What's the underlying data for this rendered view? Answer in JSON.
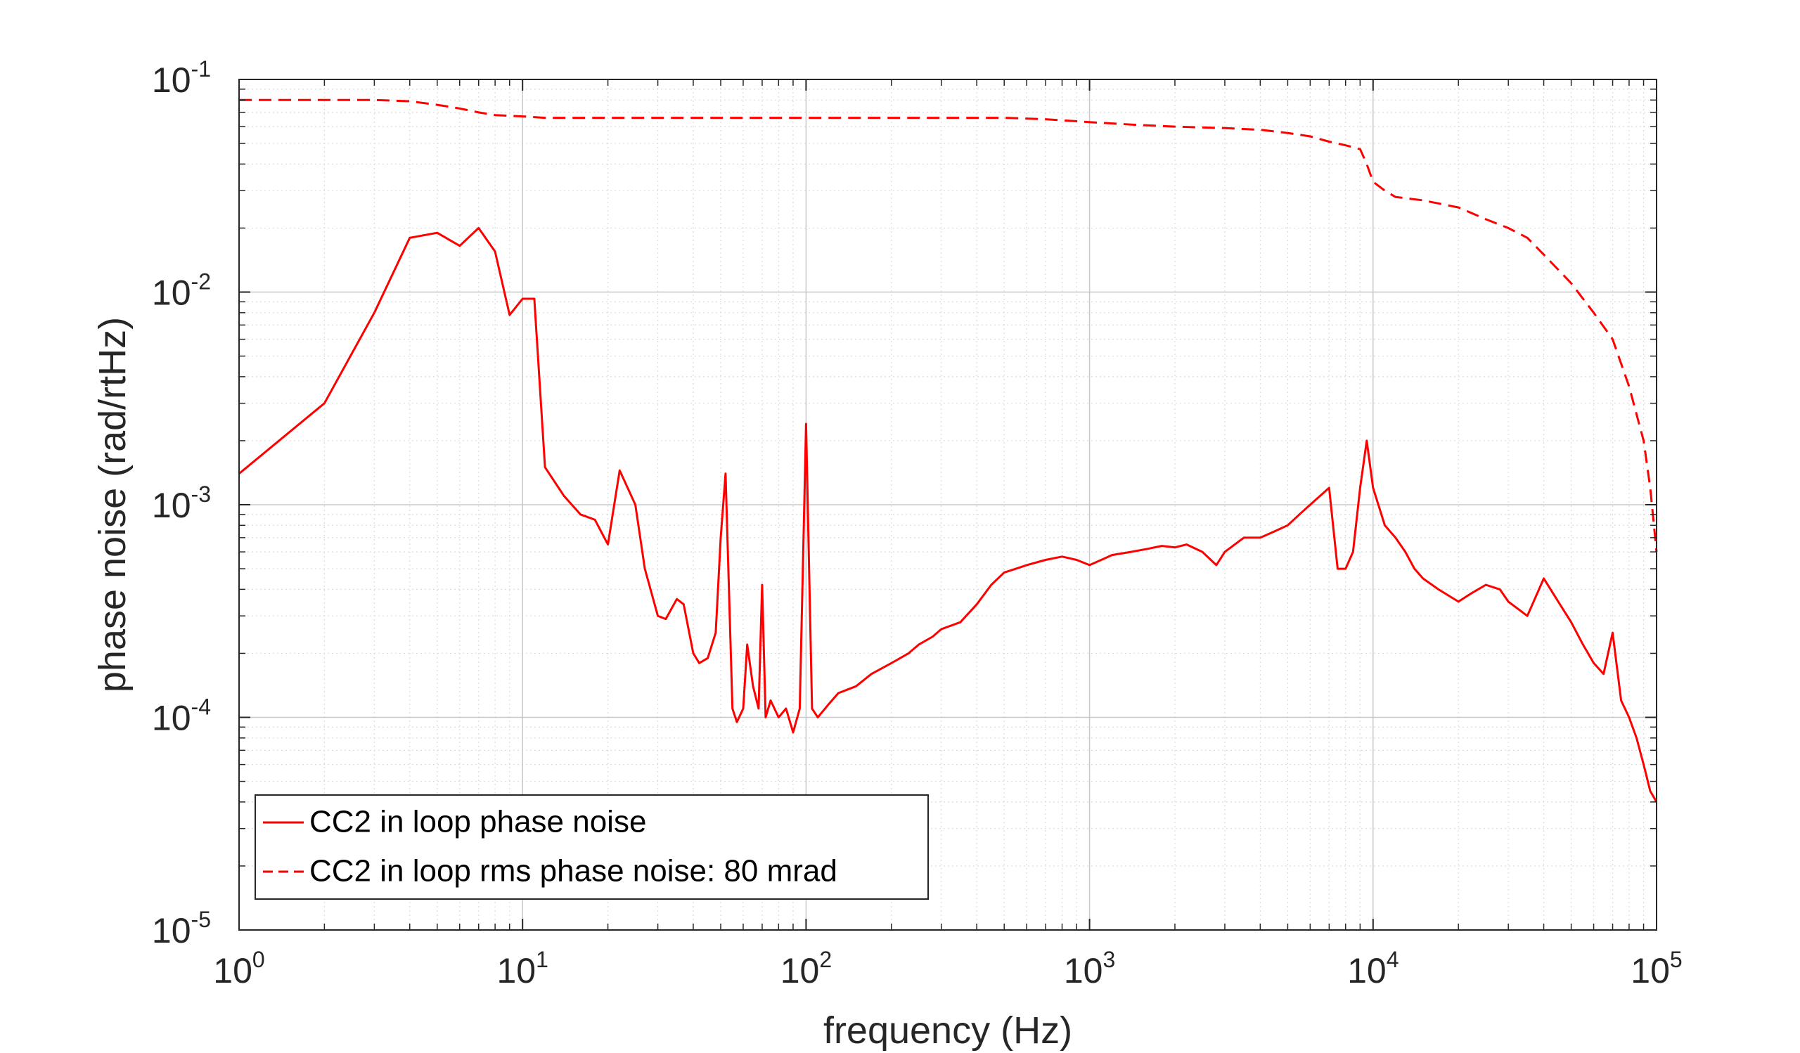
{
  "chart_data": {
    "type": "line",
    "xlabel": "frequency (Hz)",
    "ylabel": "phase noise (rad/rtHz)",
    "xscale": "log",
    "yscale": "log",
    "xlim": [
      1,
      100000
    ],
    "ylim": [
      1e-05,
      0.1
    ],
    "grid": true,
    "legend_position": "bottom-left",
    "x_ticks": [
      {
        "base": "10",
        "exp": "0"
      },
      {
        "base": "10",
        "exp": "1"
      },
      {
        "base": "10",
        "exp": "2"
      },
      {
        "base": "10",
        "exp": "3"
      },
      {
        "base": "10",
        "exp": "4"
      },
      {
        "base": "10",
        "exp": "5"
      }
    ],
    "y_ticks": [
      {
        "base": "10",
        "exp": "-5"
      },
      {
        "base": "10",
        "exp": "-4"
      },
      {
        "base": "10",
        "exp": "-3"
      },
      {
        "base": "10",
        "exp": "-2"
      },
      {
        "base": "10",
        "exp": "-1"
      }
    ],
    "series": [
      {
        "name": "CC2 in loop phase noise",
        "color": "#ff0000",
        "style": "solid",
        "x": [
          1,
          2,
          3,
          4,
          5,
          6,
          7,
          8,
          9,
          10,
          11,
          12,
          14,
          16,
          18,
          20,
          22,
          25,
          27,
          30,
          32,
          35,
          37,
          40,
          42,
          45,
          48,
          50,
          52,
          55,
          57,
          60,
          62,
          65,
          68,
          70,
          72,
          75,
          80,
          85,
          90,
          95,
          100,
          105,
          110,
          120,
          130,
          150,
          170,
          200,
          230,
          250,
          280,
          300,
          350,
          400,
          450,
          500,
          550,
          600,
          700,
          800,
          900,
          1000,
          1100,
          1200,
          1400,
          1600,
          1800,
          2000,
          2200,
          2500,
          2800,
          3000,
          3500,
          4000,
          4500,
          5000,
          5500,
          6000,
          6500,
          7000,
          7500,
          8000,
          8500,
          9000,
          9500,
          10000,
          11000,
          12000,
          13000,
          14000,
          15000,
          17000,
          20000,
          22000,
          25000,
          28000,
          30000,
          35000,
          40000,
          45000,
          50000,
          55000,
          60000,
          65000,
          70000,
          75000,
          80000,
          85000,
          90000,
          95000,
          100000
        ],
        "values": [
          0.0014,
          0.003,
          0.008,
          0.018,
          0.019,
          0.0165,
          0.02,
          0.0155,
          0.0078,
          0.0093,
          0.0093,
          0.0015,
          0.0011,
          0.0009,
          0.00085,
          0.00065,
          0.00145,
          0.001,
          0.0005,
          0.0003,
          0.00029,
          0.00036,
          0.00034,
          0.0002,
          0.00018,
          0.00019,
          0.00025,
          0.0007,
          0.0014,
          0.00011,
          9.5e-05,
          0.00011,
          0.00022,
          0.00014,
          0.00011,
          0.00042,
          0.0001,
          0.00012,
          0.0001,
          0.00011,
          8.5e-05,
          0.00011,
          0.0024,
          0.00011,
          0.0001,
          0.000115,
          0.00013,
          0.00014,
          0.00016,
          0.00018,
          0.0002,
          0.00022,
          0.00024,
          0.00026,
          0.00028,
          0.00034,
          0.00042,
          0.00048,
          0.0005,
          0.00052,
          0.00055,
          0.00057,
          0.00055,
          0.00052,
          0.00055,
          0.00058,
          0.0006,
          0.00062,
          0.00064,
          0.00063,
          0.00065,
          0.0006,
          0.00052,
          0.0006,
          0.0007,
          0.0007,
          0.00075,
          0.0008,
          0.0009,
          0.001,
          0.0011,
          0.0012,
          0.0005,
          0.0005,
          0.0006,
          0.0012,
          0.002,
          0.0012,
          0.0008,
          0.0007,
          0.0006,
          0.0005,
          0.00045,
          0.0004,
          0.00035,
          0.00038,
          0.00042,
          0.0004,
          0.00035,
          0.0003,
          0.00045,
          0.00035,
          0.00028,
          0.00022,
          0.00018,
          0.00016,
          0.00025,
          0.00012,
          0.0001,
          8e-05,
          6e-05,
          4.5e-05,
          4e-05
        ]
      },
      {
        "name": "CC2 in loop rms phase noise: 80 mrad",
        "color": "#ff0000",
        "style": "dashed",
        "x": [
          1,
          2,
          3,
          4,
          5,
          6,
          7,
          8,
          10,
          12,
          15,
          20,
          30,
          50,
          100,
          200,
          300,
          500,
          700,
          1000,
          1500,
          2000,
          3000,
          4000,
          5000,
          6000,
          7000,
          8000,
          9000,
          9500,
          10000,
          11000,
          12000,
          15000,
          20000,
          25000,
          30000,
          35000,
          40000,
          50000,
          60000,
          70000,
          80000,
          90000,
          95000,
          100000
        ],
        "values": [
          0.08,
          0.08,
          0.08,
          0.079,
          0.076,
          0.073,
          0.07,
          0.068,
          0.067,
          0.066,
          0.066,
          0.066,
          0.066,
          0.066,
          0.066,
          0.066,
          0.066,
          0.066,
          0.065,
          0.063,
          0.061,
          0.06,
          0.059,
          0.058,
          0.056,
          0.054,
          0.051,
          0.049,
          0.047,
          0.04,
          0.033,
          0.03,
          0.028,
          0.027,
          0.025,
          0.022,
          0.02,
          0.018,
          0.015,
          0.011,
          0.008,
          0.006,
          0.0036,
          0.002,
          0.0012,
          0.0006
        ]
      }
    ]
  }
}
